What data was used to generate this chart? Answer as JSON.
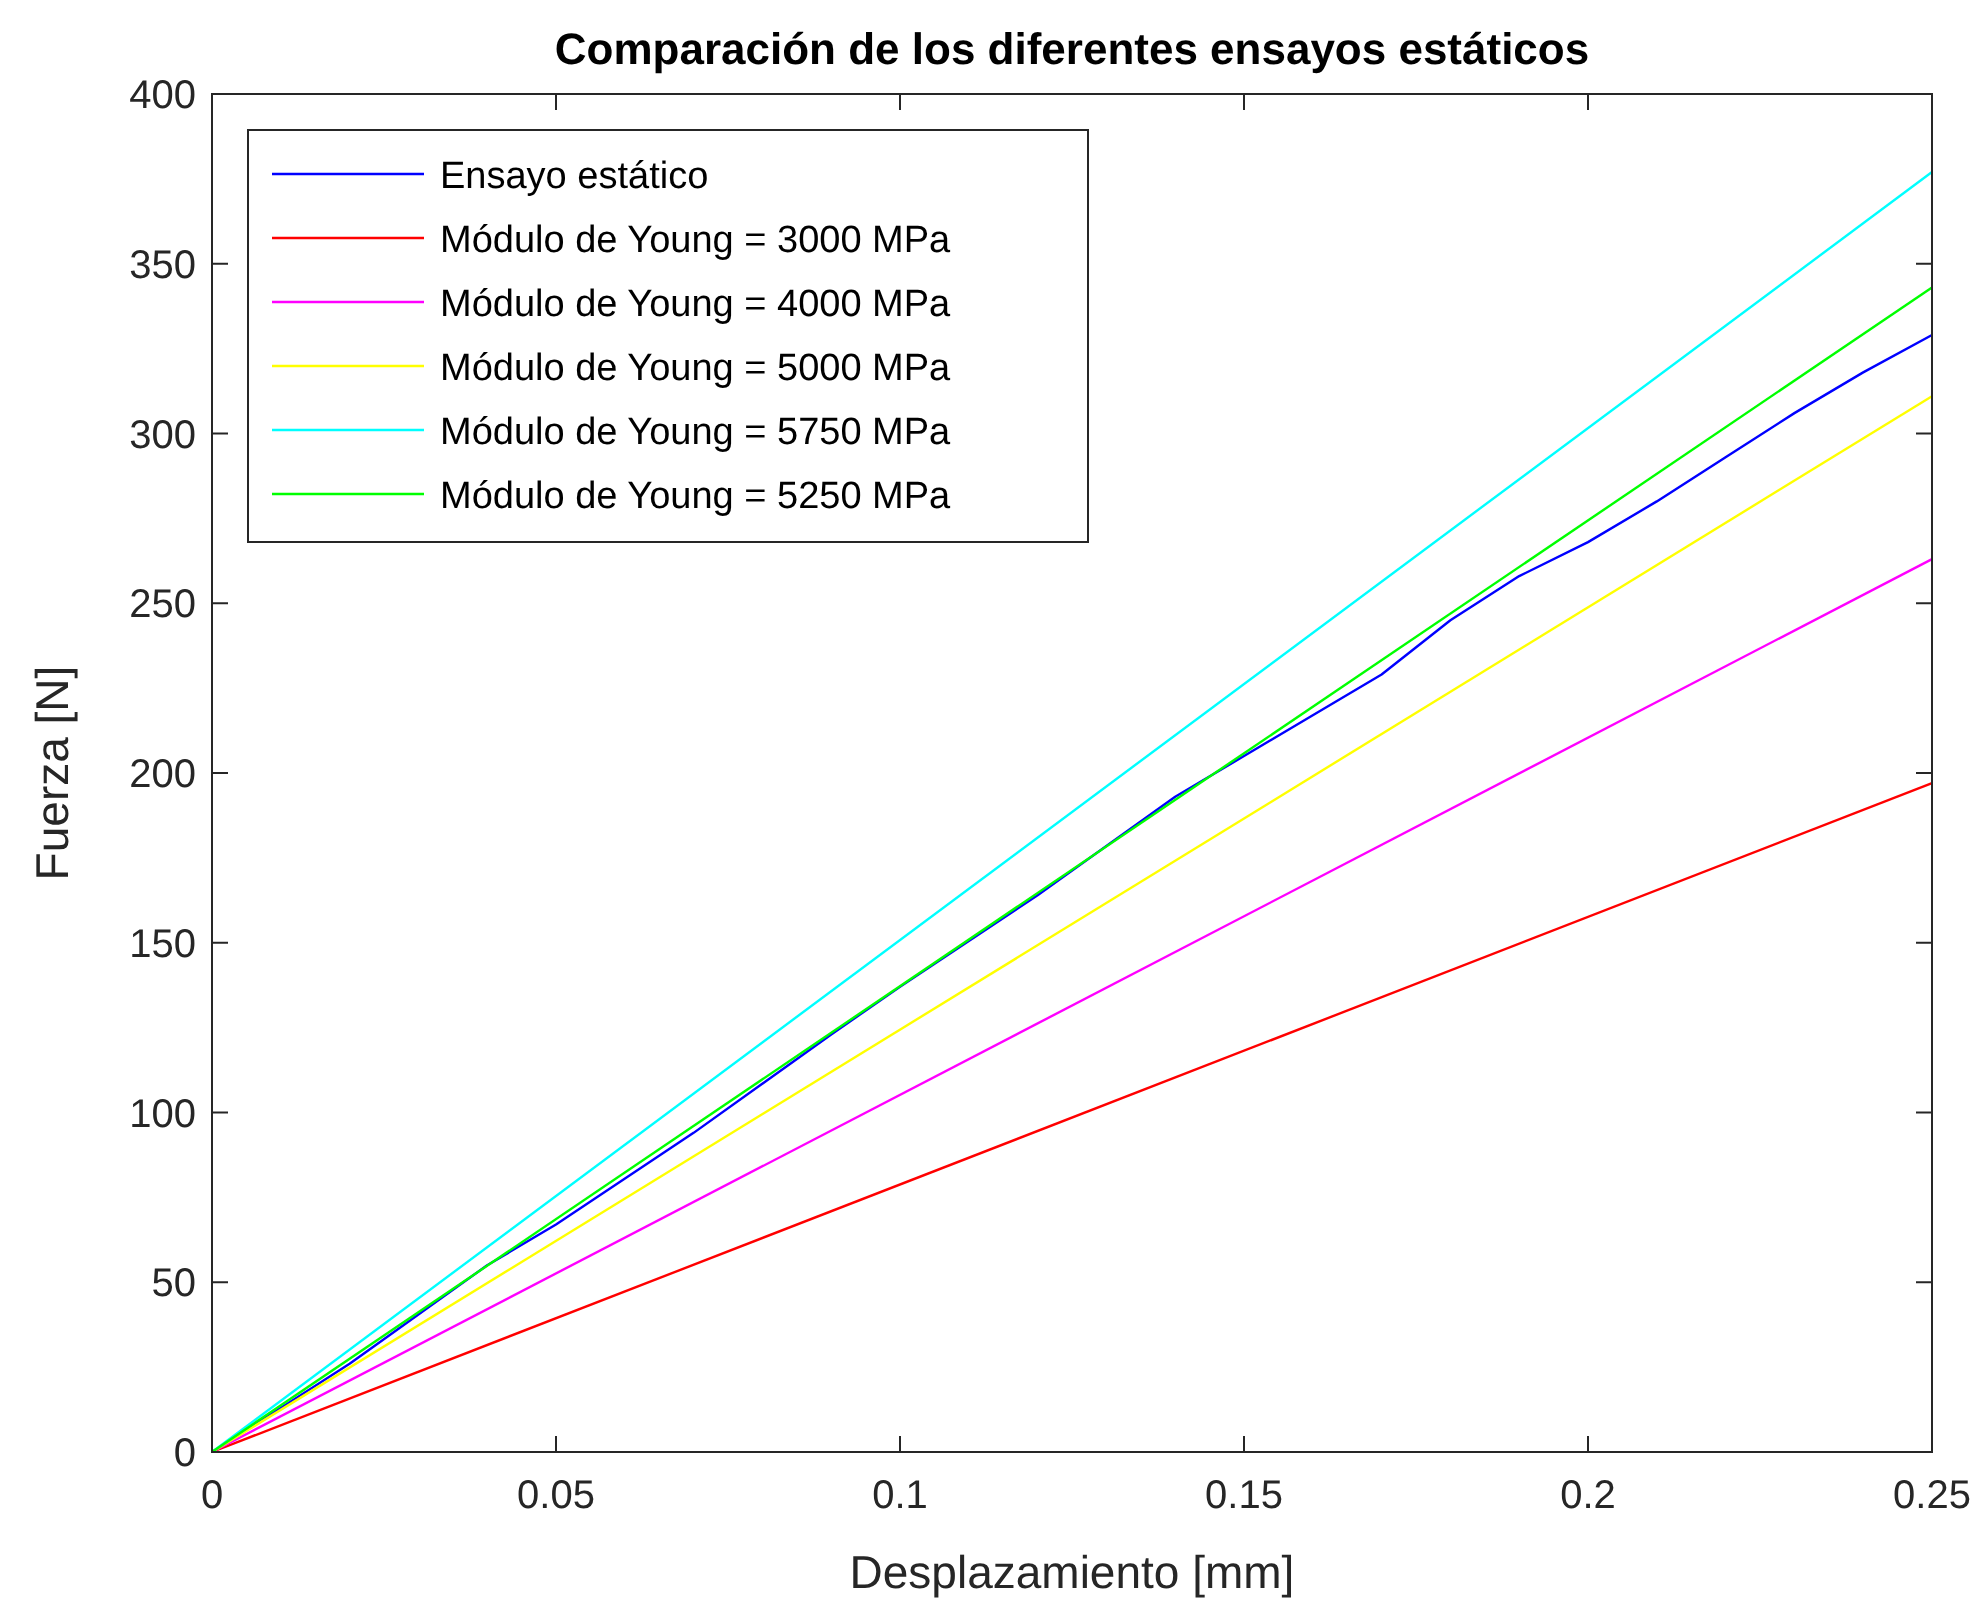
{
  "chart_data": {
    "type": "line",
    "title": "Comparación de los diferentes ensayos estáticos",
    "xlabel": "Desplazamiento [mm]",
    "ylabel": "Fuerza [N]",
    "xlim": [
      0,
      0.25
    ],
    "ylim": [
      0,
      400
    ],
    "xticks": [
      0,
      0.05,
      0.1,
      0.15,
      0.2,
      0.25
    ],
    "yticks": [
      0,
      50,
      100,
      150,
      200,
      250,
      300,
      350,
      400
    ],
    "legend": "top left",
    "grid": false,
    "marker": "none",
    "line_style": "solid",
    "series": [
      {
        "name": "Ensayo estático",
        "color": "#0000ff",
        "x": [
          0,
          0.02,
          0.04,
          0.05,
          0.07,
          0.09,
          0.1,
          0.12,
          0.14,
          0.15,
          0.16,
          0.17,
          0.18,
          0.19,
          0.2,
          0.21,
          0.22,
          0.23,
          0.24,
          0.25
        ],
        "values": [
          0,
          26,
          55,
          67,
          94,
          123,
          137,
          164,
          193,
          205,
          217,
          229,
          245,
          258,
          268,
          280,
          293,
          306,
          318,
          329
        ]
      },
      {
        "name": "Módulo de Young = 3000 MPa",
        "color": "#ff0000",
        "x": [
          0,
          0.25
        ],
        "values": [
          0,
          197
        ]
      },
      {
        "name": "Módulo de Young = 4000 MPa",
        "color": "#ff00ff",
        "x": [
          0,
          0.25
        ],
        "values": [
          0,
          263
        ]
      },
      {
        "name": "Módulo de Young = 5000 MPa",
        "color": "#ffff00",
        "x": [
          0,
          0.25
        ],
        "values": [
          0,
          311
        ]
      },
      {
        "name": "Módulo de Young = 5750 MPa",
        "color": "#00ffff",
        "x": [
          0,
          0.25
        ],
        "values": [
          0,
          377
        ]
      },
      {
        "name": "Módulo de Young = 5250 MPa",
        "color": "#00ff00",
        "x": [
          0,
          0.25
        ],
        "values": [
          0,
          343
        ]
      }
    ]
  }
}
